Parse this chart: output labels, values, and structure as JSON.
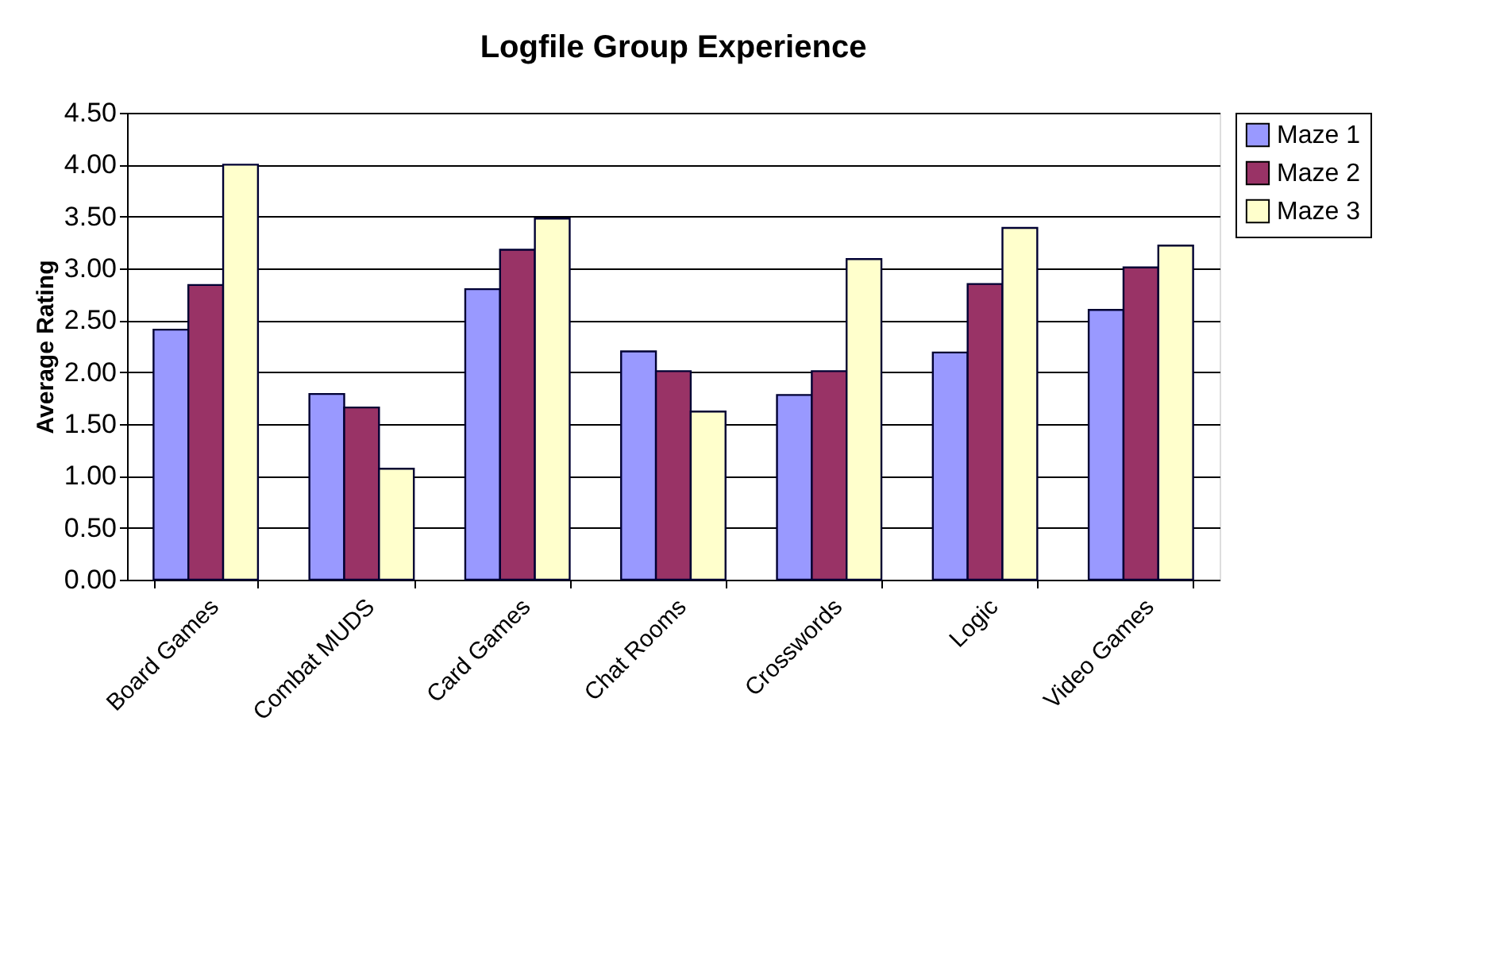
{
  "chart_data": {
    "type": "bar",
    "title": "Logfile Group Experience",
    "ylabel": "Average Rating",
    "categories": [
      "Board Games",
      "Combat MUDS",
      "Card Games",
      "Chat Rooms",
      "Crosswords",
      "Logic",
      "Video Games"
    ],
    "series": [
      {
        "name": "Maze 1",
        "color": "#9999ff",
        "values": [
          2.41,
          1.79,
          2.8,
          2.2,
          1.78,
          2.19,
          2.6
        ]
      },
      {
        "name": "Maze 2",
        "color": "#993366",
        "values": [
          2.84,
          1.66,
          3.18,
          2.01,
          2.01,
          2.85,
          3.01
        ]
      },
      {
        "name": "Maze 3",
        "color": "#ffffcc",
        "values": [
          4.0,
          1.07,
          3.48,
          1.62,
          3.09,
          3.39,
          3.22
        ]
      }
    ],
    "ylim": [
      0,
      4.5
    ],
    "yticks": [
      {
        "value": 0,
        "label": "0.00"
      },
      {
        "value": 0.5,
        "label": "0.50"
      },
      {
        "value": 1,
        "label": "1.00"
      },
      {
        "value": 1.5,
        "label": "1.50"
      },
      {
        "value": 2,
        "label": "2.00"
      },
      {
        "value": 2.5,
        "label": "2.50"
      },
      {
        "value": 3,
        "label": "3.00"
      },
      {
        "value": 3.5,
        "label": "3.50"
      },
      {
        "value": 4,
        "label": "4.00"
      },
      {
        "value": 4.5,
        "label": "4.50"
      }
    ],
    "grid": "y",
    "legend": "right"
  }
}
